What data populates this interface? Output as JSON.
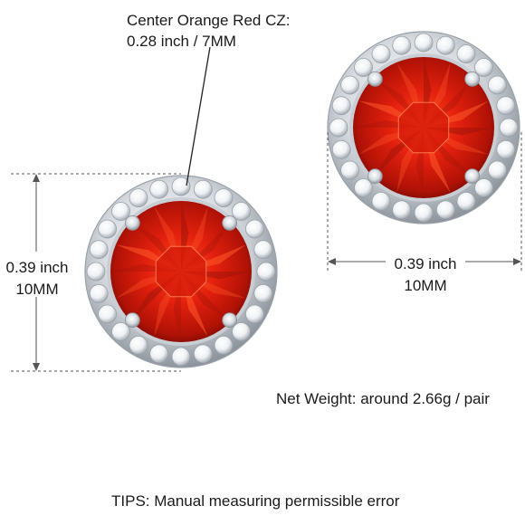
{
  "callout": {
    "line1": "Center Orange Red CZ:",
    "line2": "0.28 inch / 7MM"
  },
  "height_dimension": {
    "inch": "0.39 inch",
    "mm": "10MM"
  },
  "width_dimension": {
    "inch": "0.39 inch",
    "mm": "10MM"
  },
  "net_weight": "Net Weight: around 2.66g / pair",
  "tips": "TIPS: Manual measuring permissible error",
  "colors": {
    "gem_red": "#e3200e",
    "gem_dark": "#8e0c04",
    "gem_highlight": "#ff7a45",
    "metal_silver": "#c7ccd3",
    "dimension_line": "#555555"
  }
}
